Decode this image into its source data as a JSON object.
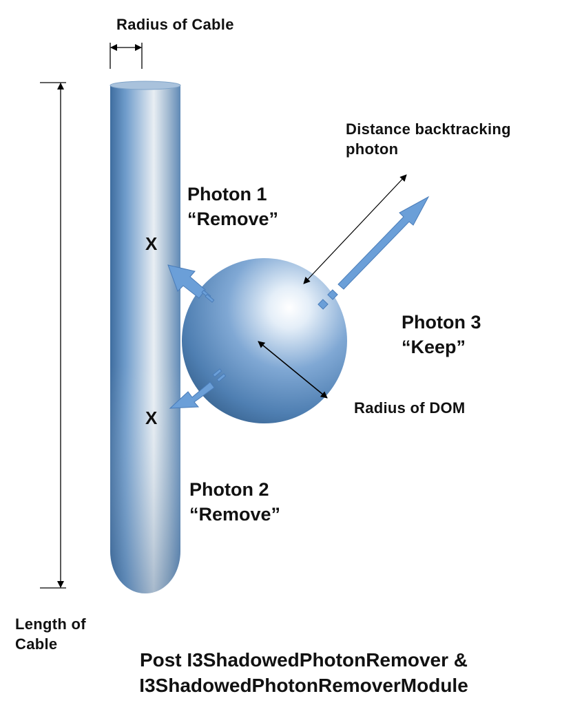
{
  "labels": {
    "radius_cable": "Radius of Cable",
    "distance_line1": "Distance backtracking",
    "distance_line2": "photon",
    "photon1_title": "Photon 1",
    "photon1_status": "“Remove”",
    "photon2_title": "Photon 2",
    "photon2_status": "“Remove”",
    "photon3_title": "Photon 3",
    "photon3_status": "“Keep”",
    "radius_dom": "Radius of DOM",
    "length_line1": "Length of",
    "length_line2": "Cable",
    "mark_1": "X",
    "mark_2": "X"
  },
  "caption": {
    "line1": "Post I3ShadowedPhotonRemover &",
    "line2": "I3ShadowedPhotonRemoverModule"
  },
  "colors": {
    "cable": "#6e9ccc",
    "dom": "#6a99cc",
    "photon_arrow": "#6b9fd8",
    "annotation": "#000000"
  }
}
